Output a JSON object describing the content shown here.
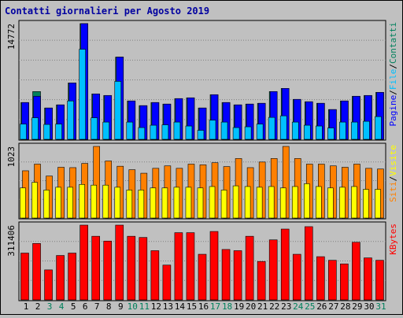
{
  "chart_data": {
    "type": "bar",
    "title": "Contatti giornalieri per Agosto 2019",
    "categories": [
      "1",
      "2",
      "3",
      "4",
      "5",
      "6",
      "7",
      "8",
      "9",
      "10",
      "11",
      "12",
      "13",
      "14",
      "15",
      "16",
      "17",
      "18",
      "19",
      "20",
      "21",
      "22",
      "23",
      "24",
      "25",
      "26",
      "27",
      "28",
      "29",
      "30",
      "31"
    ],
    "weekend_days": [
      "3",
      "4",
      "10",
      "11",
      "17",
      "18",
      "24",
      "25",
      "31"
    ],
    "colors": {
      "title": "#0000a0",
      "weekday_label": "#000000",
      "weekend_label": "#00805c",
      "contatti": "#00805c",
      "pagine": "#0000ff",
      "file": "#00c0ff",
      "siti": "#ff8000",
      "visite": "#ffff00",
      "kbytes": "#ff0000",
      "panel_bg": "#c0c0c0",
      "grid": "#808080"
    },
    "panels": [
      {
        "name": "pagine-file-contatti",
        "y_max_label": "14772",
        "ylim": [
          0,
          14772
        ],
        "right_labels": [
          {
            "text": "Pagine",
            "color": "#0000ff"
          },
          {
            "text": "/",
            "color": "#000000"
          },
          {
            "text": "File",
            "color": "#00c0ff"
          },
          {
            "text": "/",
            "color": "#000000"
          },
          {
            "text": "Contatti",
            "color": "#00805c"
          }
        ],
        "series": [
          {
            "name": "Contatti",
            "color": "#00805c",
            "values": [
              4700,
              6100,
              4000,
              4400,
              7200,
              14772,
              5800,
              5600,
              10500,
              4900,
              4300,
              4700,
              4500,
              5200,
              5300,
              4000,
              5700,
              4700,
              4400,
              4500,
              4600,
              6100,
              6500,
              5100,
              4800,
              4600,
              3800,
              4900,
              5500,
              5600,
              6000
            ]
          },
          {
            "name": "Pagine",
            "color": "#0000ff",
            "values": [
              4700,
              5500,
              4000,
              4400,
              7200,
              14772,
              5800,
              5600,
              10500,
              4900,
              4300,
              4700,
              4500,
              5200,
              5300,
              4000,
              5700,
              4700,
              4400,
              4500,
              4600,
              6100,
              6500,
              5100,
              4800,
              4600,
              3800,
              4900,
              5500,
              5600,
              6000
            ]
          },
          {
            "name": "File",
            "color": "#00c0ff",
            "values": [
              1950,
              2750,
              1900,
              1950,
              4900,
              11500,
              2750,
              2200,
              7400,
              2200,
              1500,
              1800,
              1850,
              2200,
              1700,
              1150,
              2450,
              2200,
              1500,
              1600,
              1950,
              2800,
              3000,
              2200,
              1800,
              1700,
              1450,
              2200,
              2200,
              2300,
              2900
            ]
          }
        ]
      },
      {
        "name": "siti-visite",
        "y_max_label": "1023",
        "ylim": [
          0,
          1023
        ],
        "right_labels": [
          {
            "text": "Siti",
            "color": "#ff8000"
          },
          {
            "text": "/",
            "color": "#000000"
          },
          {
            "text": "Visite",
            "color": "#ffff00"
          }
        ],
        "series": [
          {
            "name": "Siti",
            "color": "#ff8000",
            "values": [
              675,
              770,
              600,
              725,
              720,
              780,
              1023,
              815,
              740,
              690,
              640,
              710,
              745,
              710,
              770,
              760,
              790,
              735,
              850,
              720,
              800,
              850,
              1023,
              850,
              770,
              770,
              745,
              725,
              770,
              710,
              700
            ]
          },
          {
            "name": "Visite",
            "color": "#ffff00",
            "values": [
              430,
              510,
              400,
              440,
              440,
              480,
              470,
              470,
              440,
              400,
              400,
              430,
              430,
              440,
              440,
              430,
              450,
              400,
              460,
              450,
              440,
              450,
              430,
              450,
              490,
              450,
              430,
              440,
              450,
              410,
              410
            ]
          }
        ]
      },
      {
        "name": "kbytes",
        "y_max_label": "311406",
        "ylim": [
          0,
          311406
        ],
        "right_labels": [
          {
            "text": "KBytes",
            "color": "#ff0000"
          }
        ],
        "series": [
          {
            "name": "KBytes",
            "color": "#ff0000",
            "values": [
              195000,
              235000,
              125000,
              185000,
              195000,
              311406,
              265000,
              245000,
              311406,
              265000,
              260000,
              205000,
              145000,
              280000,
              280000,
              190000,
              285000,
              210000,
              205000,
              265000,
              160000,
              250000,
              295000,
              190000,
              305000,
              180000,
              165000,
              150000,
              240000,
              175000,
              165000
            ]
          }
        ]
      }
    ]
  }
}
